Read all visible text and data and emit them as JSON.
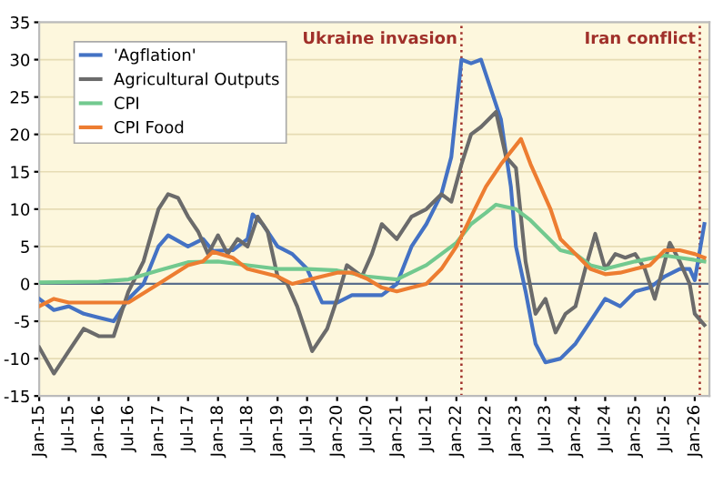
{
  "chart_data": {
    "type": "line",
    "xlim": [
      "2015-01",
      "2026-04"
    ],
    "ylim": [
      -15,
      35
    ],
    "yticks": [
      -15,
      -10,
      -5,
      0,
      5,
      10,
      15,
      20,
      25,
      30,
      35
    ],
    "xticks": [
      {
        "value": "2015-01",
        "label": "Jan-15"
      },
      {
        "value": "2015-07",
        "label": "Jul-15"
      },
      {
        "value": "2016-01",
        "label": "Jan-16"
      },
      {
        "value": "2016-07",
        "label": "Jul-16"
      },
      {
        "value": "2017-01",
        "label": "Jan-17"
      },
      {
        "value": "2017-07",
        "label": "Jul-17"
      },
      {
        "value": "2018-01",
        "label": "Jan-18"
      },
      {
        "value": "2018-07",
        "label": "Jul-18"
      },
      {
        "value": "2019-01",
        "label": "Jan-19"
      },
      {
        "value": "2019-07",
        "label": "Jul-19"
      },
      {
        "value": "2020-01",
        "label": "Jan-20"
      },
      {
        "value": "2020-07",
        "label": "Jul-20"
      },
      {
        "value": "2021-01",
        "label": "Jan-21"
      },
      {
        "value": "2021-07",
        "label": "Jul-21"
      },
      {
        "value": "2022-01",
        "label": "Jan-22"
      },
      {
        "value": "2022-07",
        "label": "Jul-22"
      },
      {
        "value": "2023-01",
        "label": "Jan-23"
      },
      {
        "value": "2023-07",
        "label": "Jul-23"
      },
      {
        "value": "2024-01",
        "label": "Jan-24"
      },
      {
        "value": "2024-07",
        "label": "Jul-24"
      },
      {
        "value": "2025-01",
        "label": "Jan-25"
      },
      {
        "value": "2025-07",
        "label": "Jul-25"
      },
      {
        "value": "2026-01",
        "label": "Jan-26"
      }
    ],
    "grid": "y",
    "legend": "top left",
    "line_style": "solid",
    "ref_lines": [
      {
        "axis": "y",
        "value": 0,
        "color": "#5a6e8c",
        "line_style": "solid"
      },
      {
        "axis": "x",
        "value": "2022-02",
        "label": "Ukraine invasion",
        "color": "#a0302a",
        "line_style": "dotted"
      },
      {
        "axis": "x",
        "value": "2026-02",
        "label": "Iran conflict",
        "color": "#a0302a",
        "line_style": "dotted"
      }
    ],
    "series": [
      {
        "name": "'Agflation'",
        "color": "#4472c4",
        "x": [
          "2015-01",
          "2015-04",
          "2015-07",
          "2015-10",
          "2016-01",
          "2016-04",
          "2016-07",
          "2016-10",
          "2017-01",
          "2017-03",
          "2017-07",
          "2017-10",
          "2017-12",
          "2018-04",
          "2018-07",
          "2018-08",
          "2018-10",
          "2019-01",
          "2019-04",
          "2019-07",
          "2019-10",
          "2020-01",
          "2020-04",
          "2020-07",
          "2020-10",
          "2021-01",
          "2021-04",
          "2021-07",
          "2021-10",
          "2021-12",
          "2022-02",
          "2022-04",
          "2022-06",
          "2022-08",
          "2022-10",
          "2022-12",
          "2023-01",
          "2023-03",
          "2023-05",
          "2023-07",
          "2023-10",
          "2024-01",
          "2024-04",
          "2024-07",
          "2024-10",
          "2025-01",
          "2025-04",
          "2025-07",
          "2025-10",
          "2025-12",
          "2026-01",
          "2026-03"
        ],
        "values": [
          -2,
          -3.5,
          -3,
          -4,
          -4.5,
          -5,
          -2,
          0,
          5,
          6.5,
          5,
          6,
          4.4,
          4.5,
          6,
          9.3,
          8,
          5,
          4,
          2,
          -2.5,
          -2.5,
          -1.5,
          -1.5,
          -1.5,
          0,
          5,
          8,
          12,
          17,
          30,
          29.5,
          30,
          26,
          22,
          13,
          5,
          -1,
          -8,
          -10.5,
          -10,
          -8,
          -5,
          -2,
          -3,
          -1,
          -0.5,
          1,
          2,
          2,
          0.5,
          8
        ]
      },
      {
        "name": "Agricultural Outputs",
        "color": "#6b6b6b",
        "x": [
          "2015-01",
          "2015-04",
          "2015-07",
          "2015-10",
          "2016-01",
          "2016-04",
          "2016-07",
          "2016-10",
          "2017-01",
          "2017-03",
          "2017-05",
          "2017-07",
          "2017-09",
          "2017-11",
          "2018-01",
          "2018-03",
          "2018-05",
          "2018-07",
          "2018-09",
          "2018-11",
          "2019-01",
          "2019-03",
          "2019-05",
          "2019-08",
          "2019-11",
          "2020-01",
          "2020-03",
          "2020-06",
          "2020-08",
          "2020-10",
          "2021-01",
          "2021-04",
          "2021-07",
          "2021-10",
          "2021-12",
          "2022-02",
          "2022-04",
          "2022-06",
          "2022-09",
          "2022-11",
          "2023-01",
          "2023-03",
          "2023-05",
          "2023-07",
          "2023-09",
          "2023-11",
          "2024-01",
          "2024-03",
          "2024-05",
          "2024-07",
          "2024-09",
          "2024-11",
          "2025-01",
          "2025-03",
          "2025-05",
          "2025-08",
          "2025-10",
          "2025-12",
          "2026-01",
          "2026-03"
        ],
        "values": [
          -8.5,
          -12,
          -9,
          -6,
          -7,
          -7,
          -1,
          3,
          10,
          12,
          11.5,
          9,
          7,
          4,
          6.5,
          4,
          6,
          5,
          9,
          7,
          1,
          0,
          -3,
          -9,
          -6,
          -2,
          2.5,
          1,
          4,
          8,
          6,
          9,
          10,
          12,
          11,
          16,
          20,
          21,
          23,
          17,
          15.5,
          3,
          -4,
          -2,
          -6.5,
          -4,
          -3,
          2,
          6.7,
          2,
          4,
          3.5,
          4,
          2,
          -2,
          5.5,
          3,
          0,
          -4,
          -5.5
        ]
      },
      {
        "name": "CPI",
        "color": "#72c98f",
        "x": [
          "2015-01",
          "2016-01",
          "2016-07",
          "2017-01",
          "2017-07",
          "2018-01",
          "2018-07",
          "2019-01",
          "2019-07",
          "2020-01",
          "2020-07",
          "2021-01",
          "2021-07",
          "2021-10",
          "2022-01",
          "2022-04",
          "2022-07",
          "2022-09",
          "2023-01",
          "2023-04",
          "2023-07",
          "2023-10",
          "2024-01",
          "2024-04",
          "2024-07",
          "2025-01",
          "2025-07",
          "2025-10",
          "2026-01",
          "2026-03"
        ],
        "values": [
          0.2,
          0.3,
          0.6,
          1.8,
          2.9,
          3,
          2.5,
          2,
          2,
          1.8,
          1,
          0.6,
          2.5,
          4,
          5.5,
          8,
          9.5,
          10.6,
          10,
          8.5,
          6.5,
          4.5,
          4,
          2.5,
          2,
          3,
          3.8,
          3.5,
          3.2,
          3
        ]
      },
      {
        "name": "CPI Food",
        "color": "#ed7d31",
        "x": [
          "2015-01",
          "2015-04",
          "2015-07",
          "2016-01",
          "2016-07",
          "2017-01",
          "2017-07",
          "2017-10",
          "2017-12",
          "2018-04",
          "2018-07",
          "2019-01",
          "2019-04",
          "2019-07",
          "2019-10",
          "2020-01",
          "2020-04",
          "2020-07",
          "2020-10",
          "2021-01",
          "2021-04",
          "2021-07",
          "2021-10",
          "2022-01",
          "2022-04",
          "2022-07",
          "2022-10",
          "2023-02",
          "2023-04",
          "2023-06",
          "2023-08",
          "2023-10",
          "2024-01",
          "2024-04",
          "2024-07",
          "2024-10",
          "2025-01",
          "2025-04",
          "2025-07",
          "2025-10",
          "2026-01",
          "2026-03"
        ],
        "values": [
          -3,
          -2,
          -2.5,
          -2.5,
          -2.5,
          0,
          2.5,
          3,
          4.3,
          3.5,
          2,
          1,
          0,
          0.5,
          1,
          1.5,
          1.5,
          0.7,
          -0.5,
          -1,
          -0.5,
          0,
          2,
          5,
          9,
          13,
          16,
          19.4,
          16,
          13,
          10,
          6,
          4,
          2,
          1.3,
          1.5,
          2,
          2.5,
          4.5,
          4.5,
          4,
          3.5
        ]
      }
    ]
  }
}
